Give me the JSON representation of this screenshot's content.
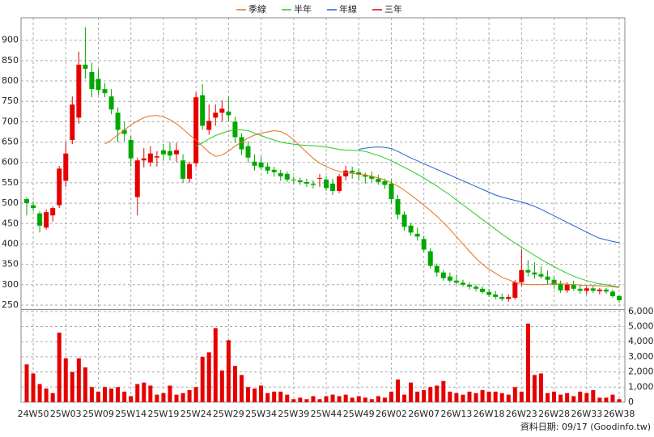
{
  "chart_data": [
    {
      "type": "candlestick",
      "categories": [
        null,
        "24W50",
        null,
        null,
        null,
        null,
        "25W03",
        null,
        null,
        null,
        null,
        "25W09",
        null,
        null,
        null,
        null,
        "25W14",
        null,
        null,
        null,
        null,
        "25W19",
        null,
        null,
        null,
        null,
        "25W24",
        null,
        null,
        null,
        null,
        "25W29",
        null,
        null,
        null,
        null,
        "25W34",
        null,
        null,
        null,
        null,
        "25W39",
        null,
        null,
        null,
        null,
        "25W44",
        null,
        null,
        null,
        null,
        "25W49",
        null,
        null,
        null,
        null,
        "26W02",
        null,
        null,
        null,
        null,
        "26W07",
        null,
        null,
        null,
        null,
        "26W13",
        null,
        null,
        null,
        null,
        "26W18",
        null,
        null,
        null,
        null,
        "26W23",
        null,
        null,
        null,
        null,
        "26W28",
        null,
        null,
        null,
        null,
        "26W33",
        null,
        null,
        null,
        null,
        "26W38"
      ],
      "ohlc": [
        [
          510,
          515,
          470,
          500
        ],
        [
          495,
          505,
          480,
          488
        ],
        [
          475,
          480,
          428,
          445
        ],
        [
          440,
          485,
          435,
          478
        ],
        [
          470,
          492,
          455,
          488
        ],
        [
          495,
          592,
          488,
          585
        ],
        [
          555,
          650,
          540,
          622
        ],
        [
          655,
          762,
          645,
          742
        ],
        [
          710,
          872,
          695,
          840
        ],
        [
          840,
          932,
          805,
          830
        ],
        [
          822,
          845,
          760,
          780
        ],
        [
          805,
          830,
          765,
          778
        ],
        [
          780,
          795,
          760,
          770
        ],
        [
          762,
          780,
          718,
          730
        ],
        [
          722,
          735,
          650,
          680
        ],
        [
          680,
          700,
          652,
          670
        ],
        [
          655,
          665,
          590,
          610
        ],
        [
          515,
          612,
          470,
          605
        ],
        [
          605,
          635,
          588,
          610
        ],
        [
          600,
          640,
          590,
          622
        ],
        [
          612,
          628,
          590,
          615
        ],
        [
          630,
          645,
          605,
          620
        ],
        [
          628,
          650,
          605,
          617
        ],
        [
          620,
          648,
          600,
          630
        ],
        [
          605,
          620,
          550,
          560
        ],
        [
          560,
          602,
          550,
          596
        ],
        [
          598,
          772,
          588,
          760
        ],
        [
          765,
          792,
          680,
          690
        ],
        [
          680,
          742,
          668,
          702
        ],
        [
          710,
          742,
          690,
          722
        ],
        [
          722,
          752,
          700,
          732
        ],
        [
          725,
          762,
          700,
          716
        ],
        [
          700,
          712,
          648,
          662
        ],
        [
          662,
          672,
          618,
          632
        ],
        [
          640,
          652,
          600,
          612
        ],
        [
          602,
          620,
          580,
          592
        ],
        [
          600,
          615,
          582,
          588
        ],
        [
          590,
          600,
          572,
          580
        ],
        [
          582,
          590,
          565,
          576
        ],
        [
          574,
          582,
          555,
          566
        ],
        [
          572,
          578,
          552,
          558
        ],
        [
          558,
          565,
          548,
          556
        ],
        [
          556,
          563,
          545,
          552
        ],
        [
          552,
          560,
          540,
          548
        ],
        [
          548,
          556,
          536,
          545
        ],
        [
          560,
          572,
          540,
          562
        ],
        [
          558,
          566,
          530,
          537
        ],
        [
          548,
          560,
          520,
          530
        ],
        [
          530,
          572,
          525,
          566
        ],
        [
          566,
          592,
          556,
          580
        ],
        [
          580,
          590,
          560,
          575
        ],
        [
          576,
          585,
          556,
          570
        ],
        [
          570,
          575,
          548,
          565
        ],
        [
          566,
          578,
          552,
          560
        ],
        [
          560,
          570,
          545,
          552
        ],
        [
          554,
          560,
          535,
          545
        ],
        [
          548,
          558,
          500,
          510
        ],
        [
          510,
          520,
          460,
          472
        ],
        [
          472,
          480,
          432,
          442
        ],
        [
          445,
          452,
          420,
          428
        ],
        [
          425,
          440,
          408,
          418
        ],
        [
          412,
          420,
          380,
          386
        ],
        [
          382,
          390,
          340,
          346
        ],
        [
          346,
          352,
          320,
          330
        ],
        [
          330,
          336,
          310,
          316
        ],
        [
          320,
          330,
          305,
          310
        ],
        [
          310,
          325,
          300,
          305
        ],
        [
          305,
          312,
          295,
          300
        ],
        [
          300,
          306,
          288,
          295
        ],
        [
          295,
          300,
          284,
          290
        ],
        [
          290,
          296,
          278,
          282
        ],
        [
          282,
          290,
          270,
          275
        ],
        [
          276,
          285,
          264,
          270
        ],
        [
          270,
          278,
          260,
          265
        ],
        [
          265,
          276,
          258,
          270
        ],
        [
          268,
          312,
          264,
          306
        ],
        [
          306,
          388,
          296,
          336
        ],
        [
          336,
          360,
          320,
          330
        ],
        [
          330,
          355,
          315,
          325
        ],
        [
          326,
          345,
          315,
          320
        ],
        [
          320,
          335,
          302,
          312
        ],
        [
          312,
          320,
          290,
          300
        ],
        [
          302,
          310,
          280,
          286
        ],
        [
          286,
          306,
          280,
          300
        ],
        [
          300,
          310,
          285,
          290
        ],
        [
          290,
          300,
          278,
          285
        ],
        [
          285,
          296,
          275,
          291
        ],
        [
          291,
          298,
          280,
          285
        ],
        [
          284,
          292,
          276,
          288
        ],
        [
          288,
          292,
          278,
          283
        ],
        [
          283,
          288,
          268,
          272
        ],
        [
          272,
          276,
          256,
          262
        ]
      ],
      "up_color": "#e60000",
      "down_color": "#00a800",
      "series": [
        {
          "name": "季線",
          "color": "#e07020",
          "values": [
            null,
            null,
            null,
            null,
            null,
            null,
            null,
            null,
            null,
            null,
            null,
            null,
            645,
            655,
            668,
            680,
            692,
            702,
            710,
            714,
            715,
            712,
            705,
            695,
            682,
            668,
            655,
            640,
            625,
            615,
            618,
            628,
            640,
            650,
            660,
            667,
            672,
            675,
            678,
            676,
            668,
            655,
            640,
            625,
            610,
            598,
            590,
            583,
            578,
            575,
            573,
            571,
            569,
            566,
            562,
            557,
            550,
            542,
            532,
            520,
            508,
            495,
            482,
            468,
            452,
            436,
            418,
            400,
            382,
            365,
            350,
            338,
            328,
            318,
            312,
            306,
            302,
            300,
            300,
            300,
            301,
            302,
            302,
            301,
            300,
            299,
            298,
            298,
            297,
            296,
            295,
            293
          ]
        },
        {
          "name": "半年",
          "color": "#22cc22",
          "values": [
            null,
            null,
            null,
            null,
            null,
            null,
            null,
            null,
            null,
            null,
            null,
            null,
            null,
            null,
            null,
            null,
            null,
            null,
            null,
            null,
            null,
            null,
            null,
            null,
            null,
            null,
            640,
            648,
            658,
            666,
            672,
            677,
            680,
            680,
            678,
            672,
            666,
            660,
            655,
            650,
            647,
            645,
            643,
            642,
            641,
            640,
            638,
            635,
            632,
            630,
            630,
            629,
            627,
            622,
            617,
            611,
            604,
            596,
            588,
            580,
            571,
            562,
            552,
            542,
            531,
            520,
            508,
            496,
            484,
            472,
            460,
            448,
            436,
            424,
            413,
            402,
            392,
            382,
            372,
            362,
            353,
            344,
            336,
            328,
            321,
            315,
            310,
            306,
            302,
            300,
            297,
            294
          ]
        },
        {
          "name": "年線",
          "color": "#1f5fcf",
          "values": [
            null,
            null,
            null,
            null,
            null,
            null,
            null,
            null,
            null,
            null,
            null,
            null,
            null,
            null,
            null,
            null,
            null,
            null,
            null,
            null,
            null,
            null,
            null,
            null,
            null,
            null,
            null,
            null,
            null,
            null,
            null,
            null,
            null,
            null,
            null,
            null,
            null,
            null,
            null,
            null,
            null,
            null,
            null,
            null,
            null,
            null,
            null,
            null,
            null,
            null,
            null,
            632,
            635,
            637,
            638,
            637,
            634,
            627,
            619,
            611,
            604,
            597,
            590,
            583,
            576,
            569,
            562,
            555,
            548,
            541,
            534,
            527,
            520,
            515,
            511,
            507,
            503,
            498,
            492,
            485,
            477,
            469,
            461,
            453,
            445,
            437,
            429,
            421,
            414,
            410,
            406,
            403
          ]
        },
        {
          "name": "三年",
          "color": "#e60000",
          "values": [
            null,
            null,
            null,
            null,
            null,
            null,
            null,
            null,
            null,
            null,
            null,
            null,
            null,
            null,
            null,
            null,
            null,
            null,
            null,
            null,
            null,
            null,
            null,
            null,
            null,
            null,
            null,
            null,
            null,
            null,
            null,
            null,
            null,
            null,
            null,
            null,
            null,
            null,
            null,
            null,
            null,
            null,
            null,
            null,
            null,
            null,
            null,
            null,
            null,
            null,
            null,
            null,
            null,
            null,
            null,
            null,
            null,
            null,
            null,
            null,
            null,
            null,
            null,
            null,
            null,
            null,
            null,
            null,
            null,
            null,
            null,
            null,
            null,
            null,
            null,
            null,
            null,
            null,
            null,
            null,
            null,
            null,
            null,
            null,
            null,
            null,
            null,
            null,
            null,
            null,
            null,
            null
          ]
        }
      ],
      "ylim": [
        240,
        955
      ],
      "yticks": [
        250,
        300,
        350,
        400,
        450,
        500,
        550,
        600,
        650,
        700,
        750,
        800,
        850,
        900
      ],
      "grid": true,
      "legend_position": "top",
      "footer": "資料日期: 09/17  (Goodinfo.tw)"
    },
    {
      "type": "bar",
      "color": "#e60000",
      "values": [
        2500,
        1900,
        1200,
        900,
        600,
        4600,
        2900,
        2000,
        2900,
        2300,
        1000,
        700,
        1000,
        900,
        1000,
        700,
        400,
        1200,
        1300,
        1100,
        500,
        600,
        1100,
        500,
        600,
        800,
        1000,
        3000,
        3300,
        4900,
        2100,
        4100,
        2400,
        1800,
        1000,
        900,
        1100,
        600,
        700,
        700,
        500,
        200,
        300,
        200,
        400,
        200,
        400,
        500,
        400,
        500,
        300,
        400,
        300,
        200,
        400,
        300,
        700,
        1500,
        500,
        1300,
        700,
        800,
        1000,
        1100,
        1400,
        700,
        600,
        500,
        700,
        600,
        800,
        700,
        700,
        600,
        500,
        1000,
        700,
        5200,
        1800,
        1900,
        600,
        700,
        500,
        600,
        400,
        700,
        600,
        800,
        300,
        300,
        500,
        200
      ],
      "ylim": [
        0,
        6100
      ],
      "yticks": [
        0,
        {
          "value": 1000,
          "label": "1,000"
        },
        {
          "value": 2000,
          "label": "2,000"
        },
        {
          "value": 3000,
          "label": "3,000"
        },
        {
          "value": 4000,
          "label": "4,000"
        },
        {
          "value": 5000,
          "label": "5,000"
        },
        {
          "value": 6000,
          "label": "6,000"
        }
      ],
      "grid": true
    }
  ]
}
